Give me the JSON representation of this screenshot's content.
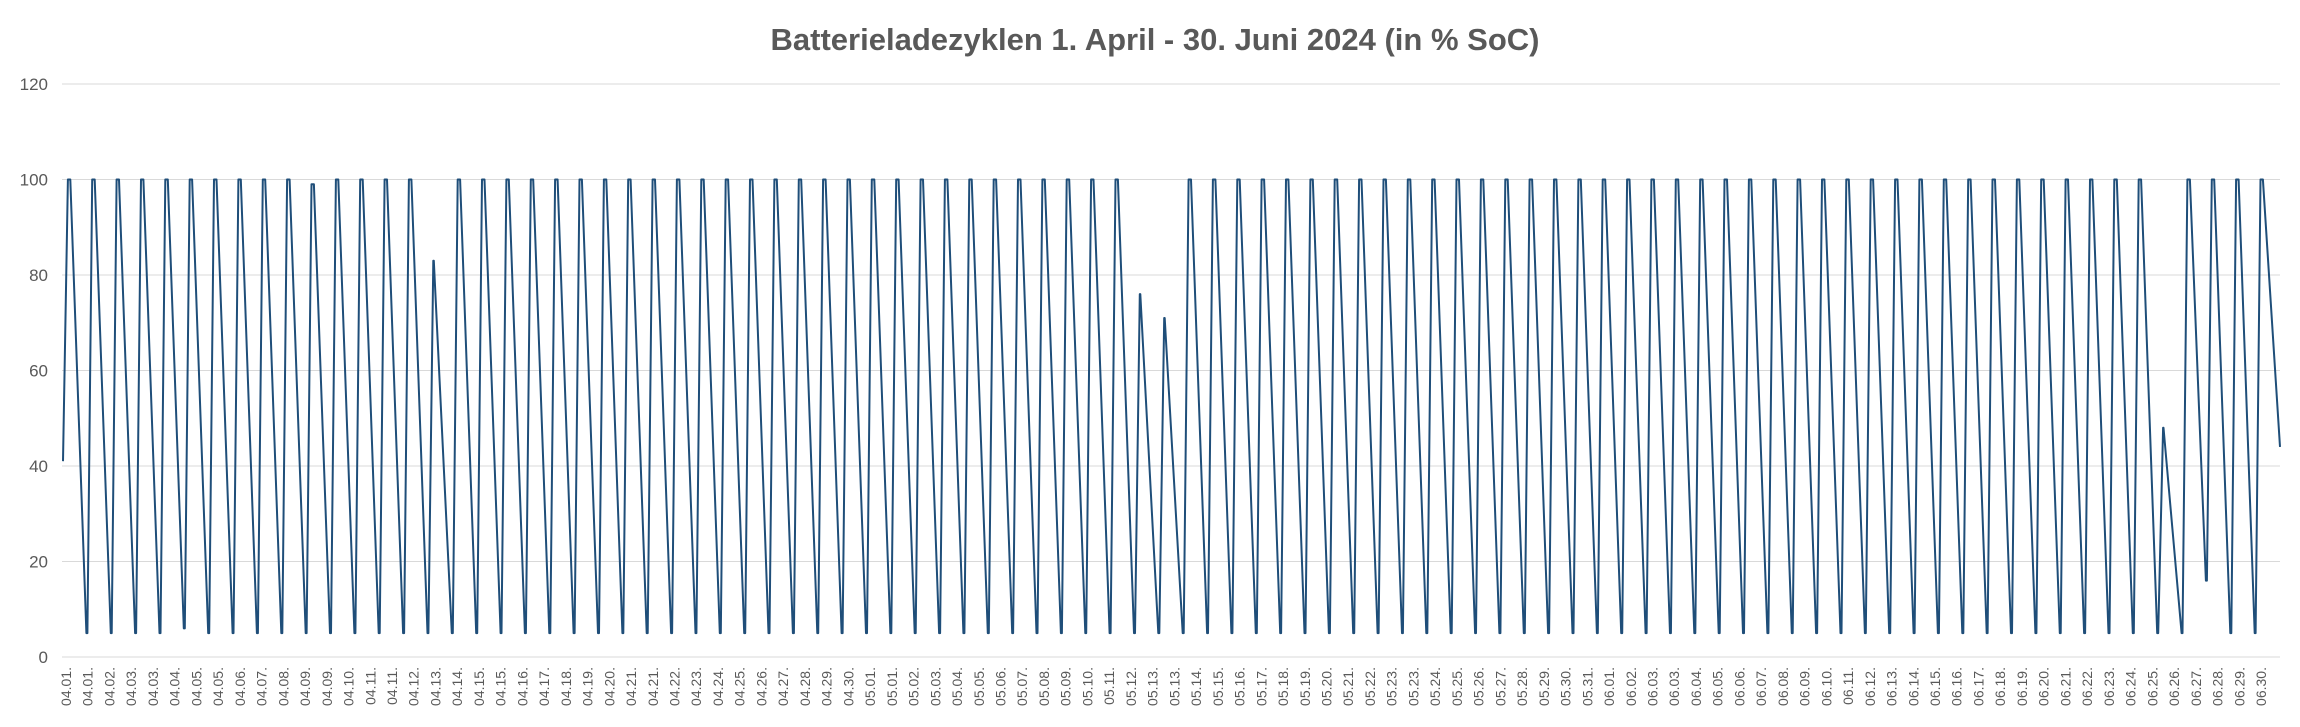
{
  "chart_data": {
    "type": "line",
    "title": "Batterieladezyklen 1. April - 30. Juni 2024 (in % SoC)",
    "xlabel": "",
    "ylabel": "",
    "ylim": [
      0,
      120
    ],
    "yticks": [
      "0",
      "20",
      "40",
      "60",
      "80",
      "100",
      "120"
    ],
    "grid": true,
    "legend": "none",
    "series_color": "#1f4e79",
    "categories": [
      "04.01.",
      "04.01.",
      "04.02.",
      "04.03.",
      "04.03.",
      "04.04.",
      "04.05.",
      "04.05.",
      "04.06.",
      "04.07.",
      "04.08.",
      "04.09.",
      "04.09.",
      "04.10.",
      "04.11.",
      "04.11.",
      "04.12.",
      "04.13.",
      "04.14.",
      "04.15.",
      "04.15.",
      "04.16.",
      "04.17.",
      "04.18.",
      "04.19.",
      "04.20.",
      "04.21.",
      "04.21.",
      "04.22.",
      "04.23.",
      "04.24.",
      "04.25.",
      "04.26.",
      "04.27.",
      "04.28.",
      "04.29.",
      "04.30.",
      "05.01.",
      "05.01.",
      "05.02.",
      "05.03.",
      "05.04.",
      "05.05.",
      "05.06.",
      "05.07.",
      "05.08.",
      "05.09.",
      "05.10.",
      "05.11.",
      "05.12.",
      "05.13.",
      "05.13.",
      "05.14.",
      "05.15.",
      "05.16.",
      "05.17.",
      "05.18.",
      "05.19.",
      "05.20.",
      "05.21.",
      "05.22.",
      "05.23.",
      "05.23.",
      "05.24.",
      "05.25.",
      "05.26.",
      "05.27.",
      "05.28.",
      "05.29.",
      "05.30.",
      "05.31.",
      "06.01.",
      "06.02.",
      "06.03.",
      "06.03.",
      "06.04.",
      "06.05.",
      "06.06.",
      "06.07.",
      "06.08.",
      "06.09.",
      "06.10.",
      "06.11.",
      "06.12.",
      "06.13.",
      "06.14.",
      "06.15.",
      "06.16.",
      "06.17.",
      "06.18.",
      "06.19.",
      "06.20.",
      "06.21.",
      "06.22.",
      "06.23.",
      "06.24.",
      "06.25.",
      "06.26.",
      "06.27.",
      "06.28.",
      "06.29.",
      "06.30."
    ],
    "series": [
      {
        "cycles": [
          {
            "max": 100,
            "min": 5
          },
          {
            "max": 100,
            "min": 5
          },
          {
            "max": 100,
            "min": 5
          },
          {
            "max": 100,
            "min": 5
          },
          {
            "max": 100,
            "min": 6
          },
          {
            "max": 100,
            "min": 5
          },
          {
            "max": 100,
            "min": 5
          },
          {
            "max": 100,
            "min": 5
          },
          {
            "max": 100,
            "min": 5
          },
          {
            "max": 100,
            "min": 5
          },
          {
            "max": 99,
            "min": 5
          },
          {
            "max": 100,
            "min": 5
          },
          {
            "max": 100,
            "min": 5
          },
          {
            "max": 100,
            "min": 5
          },
          {
            "max": 100,
            "min": 5
          },
          {
            "max": 83,
            "min": 5
          },
          {
            "max": 100,
            "min": 5
          },
          {
            "max": 100,
            "min": 5
          },
          {
            "max": 100,
            "min": 5
          },
          {
            "max": 100,
            "min": 5
          },
          {
            "max": 100,
            "min": 5
          },
          {
            "max": 100,
            "min": 5
          },
          {
            "max": 100,
            "min": 5
          },
          {
            "max": 100,
            "min": 5
          },
          {
            "max": 100,
            "min": 5
          },
          {
            "max": 100,
            "min": 5
          },
          {
            "max": 100,
            "min": 5
          },
          {
            "max": 100,
            "min": 5
          },
          {
            "max": 100,
            "min": 5
          },
          {
            "max": 100,
            "min": 5
          },
          {
            "max": 100,
            "min": 5
          },
          {
            "max": 100,
            "min": 5
          },
          {
            "max": 100,
            "min": 5
          },
          {
            "max": 100,
            "min": 5
          },
          {
            "max": 100,
            "min": 5
          },
          {
            "max": 100,
            "min": 5
          },
          {
            "max": 100,
            "min": 5
          },
          {
            "max": 100,
            "min": 5
          },
          {
            "max": 100,
            "min": 5
          },
          {
            "max": 100,
            "min": 5
          },
          {
            "max": 100,
            "min": 5
          },
          {
            "max": 100,
            "min": 5
          },
          {
            "max": 100,
            "min": 5
          },
          {
            "max": 100,
            "min": 5
          },
          {
            "max": 76,
            "min": 5
          },
          {
            "max": 71,
            "min": 5
          },
          {
            "max": 100,
            "min": 5
          },
          {
            "max": 100,
            "min": 5
          },
          {
            "max": 100,
            "min": 5
          },
          {
            "max": 100,
            "min": 5
          },
          {
            "max": 100,
            "min": 5
          },
          {
            "max": 100,
            "min": 5
          },
          {
            "max": 100,
            "min": 5
          },
          {
            "max": 100,
            "min": 5
          },
          {
            "max": 100,
            "min": 5
          },
          {
            "max": 100,
            "min": 5
          },
          {
            "max": 100,
            "min": 5
          },
          {
            "max": 100,
            "min": 5
          },
          {
            "max": 100,
            "min": 5
          },
          {
            "max": 100,
            "min": 5
          },
          {
            "max": 100,
            "min": 5
          },
          {
            "max": 100,
            "min": 5
          },
          {
            "max": 100,
            "min": 5
          },
          {
            "max": 100,
            "min": 5
          },
          {
            "max": 100,
            "min": 5
          },
          {
            "max": 100,
            "min": 5
          },
          {
            "max": 100,
            "min": 5
          },
          {
            "max": 100,
            "min": 5
          },
          {
            "max": 100,
            "min": 5
          },
          {
            "max": 100,
            "min": 5
          },
          {
            "max": 100,
            "min": 5
          },
          {
            "max": 100,
            "min": 5
          },
          {
            "max": 100,
            "min": 5
          },
          {
            "max": 100,
            "min": 5
          },
          {
            "max": 100,
            "min": 5
          },
          {
            "max": 100,
            "min": 5
          },
          {
            "max": 100,
            "min": 5
          },
          {
            "max": 100,
            "min": 5
          },
          {
            "max": 100,
            "min": 5
          },
          {
            "max": 100,
            "min": 5
          },
          {
            "max": 100,
            "min": 5
          },
          {
            "max": 100,
            "min": 5
          },
          {
            "max": 100,
            "min": 5
          },
          {
            "max": 100,
            "min": 5
          },
          {
            "max": 100,
            "min": 5
          },
          {
            "max": 100,
            "min": 5
          },
          {
            "max": 48,
            "min": 5
          },
          {
            "max": 100,
            "min": 16
          },
          {
            "max": 100,
            "min": 5
          },
          {
            "max": 100,
            "min": 5
          },
          {
            "max": 100,
            "min": 44
          }
        ],
        "start_value": 41,
        "end_value": 44
      }
    ]
  }
}
